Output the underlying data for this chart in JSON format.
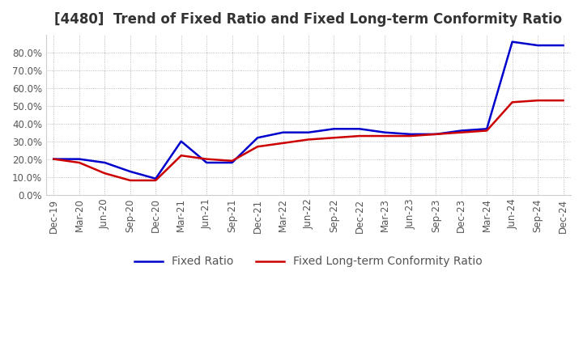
{
  "title": "[4480]  Trend of Fixed Ratio and Fixed Long-term Conformity Ratio",
  "x_labels": [
    "Dec-19",
    "Mar-20",
    "Jun-20",
    "Sep-20",
    "Dec-20",
    "Mar-21",
    "Jun-21",
    "Sep-21",
    "Dec-21",
    "Mar-22",
    "Jun-22",
    "Sep-22",
    "Dec-22",
    "Mar-23",
    "Jun-23",
    "Sep-23",
    "Dec-23",
    "Mar-24",
    "Jun-24",
    "Sep-24",
    "Dec-24"
  ],
  "fixed_ratio": [
    0.2,
    0.2,
    0.18,
    0.13,
    0.09,
    0.3,
    0.18,
    0.18,
    0.32,
    0.35,
    0.35,
    0.37,
    0.37,
    0.35,
    0.34,
    0.34,
    0.36,
    0.37,
    0.86,
    0.84,
    0.84
  ],
  "fixed_lt_ratio": [
    0.2,
    0.18,
    0.12,
    0.08,
    0.08,
    0.22,
    0.2,
    0.19,
    0.27,
    0.29,
    0.31,
    0.32,
    0.33,
    0.33,
    0.33,
    0.34,
    0.35,
    0.36,
    0.52,
    0.53,
    0.53
  ],
  "fixed_ratio_color": "#0000cc",
  "fixed_lt_ratio_color": "#cc0000",
  "background_color": "#ffffff",
  "grid_color": "#aaaaaa",
  "ylim": [
    0.0,
    0.9
  ],
  "yticks": [
    0.0,
    0.1,
    0.2,
    0.3,
    0.4,
    0.5,
    0.6,
    0.7,
    0.8
  ],
  "title_fontsize": 12,
  "legend_fontsize": 10,
  "tick_fontsize": 8.5
}
